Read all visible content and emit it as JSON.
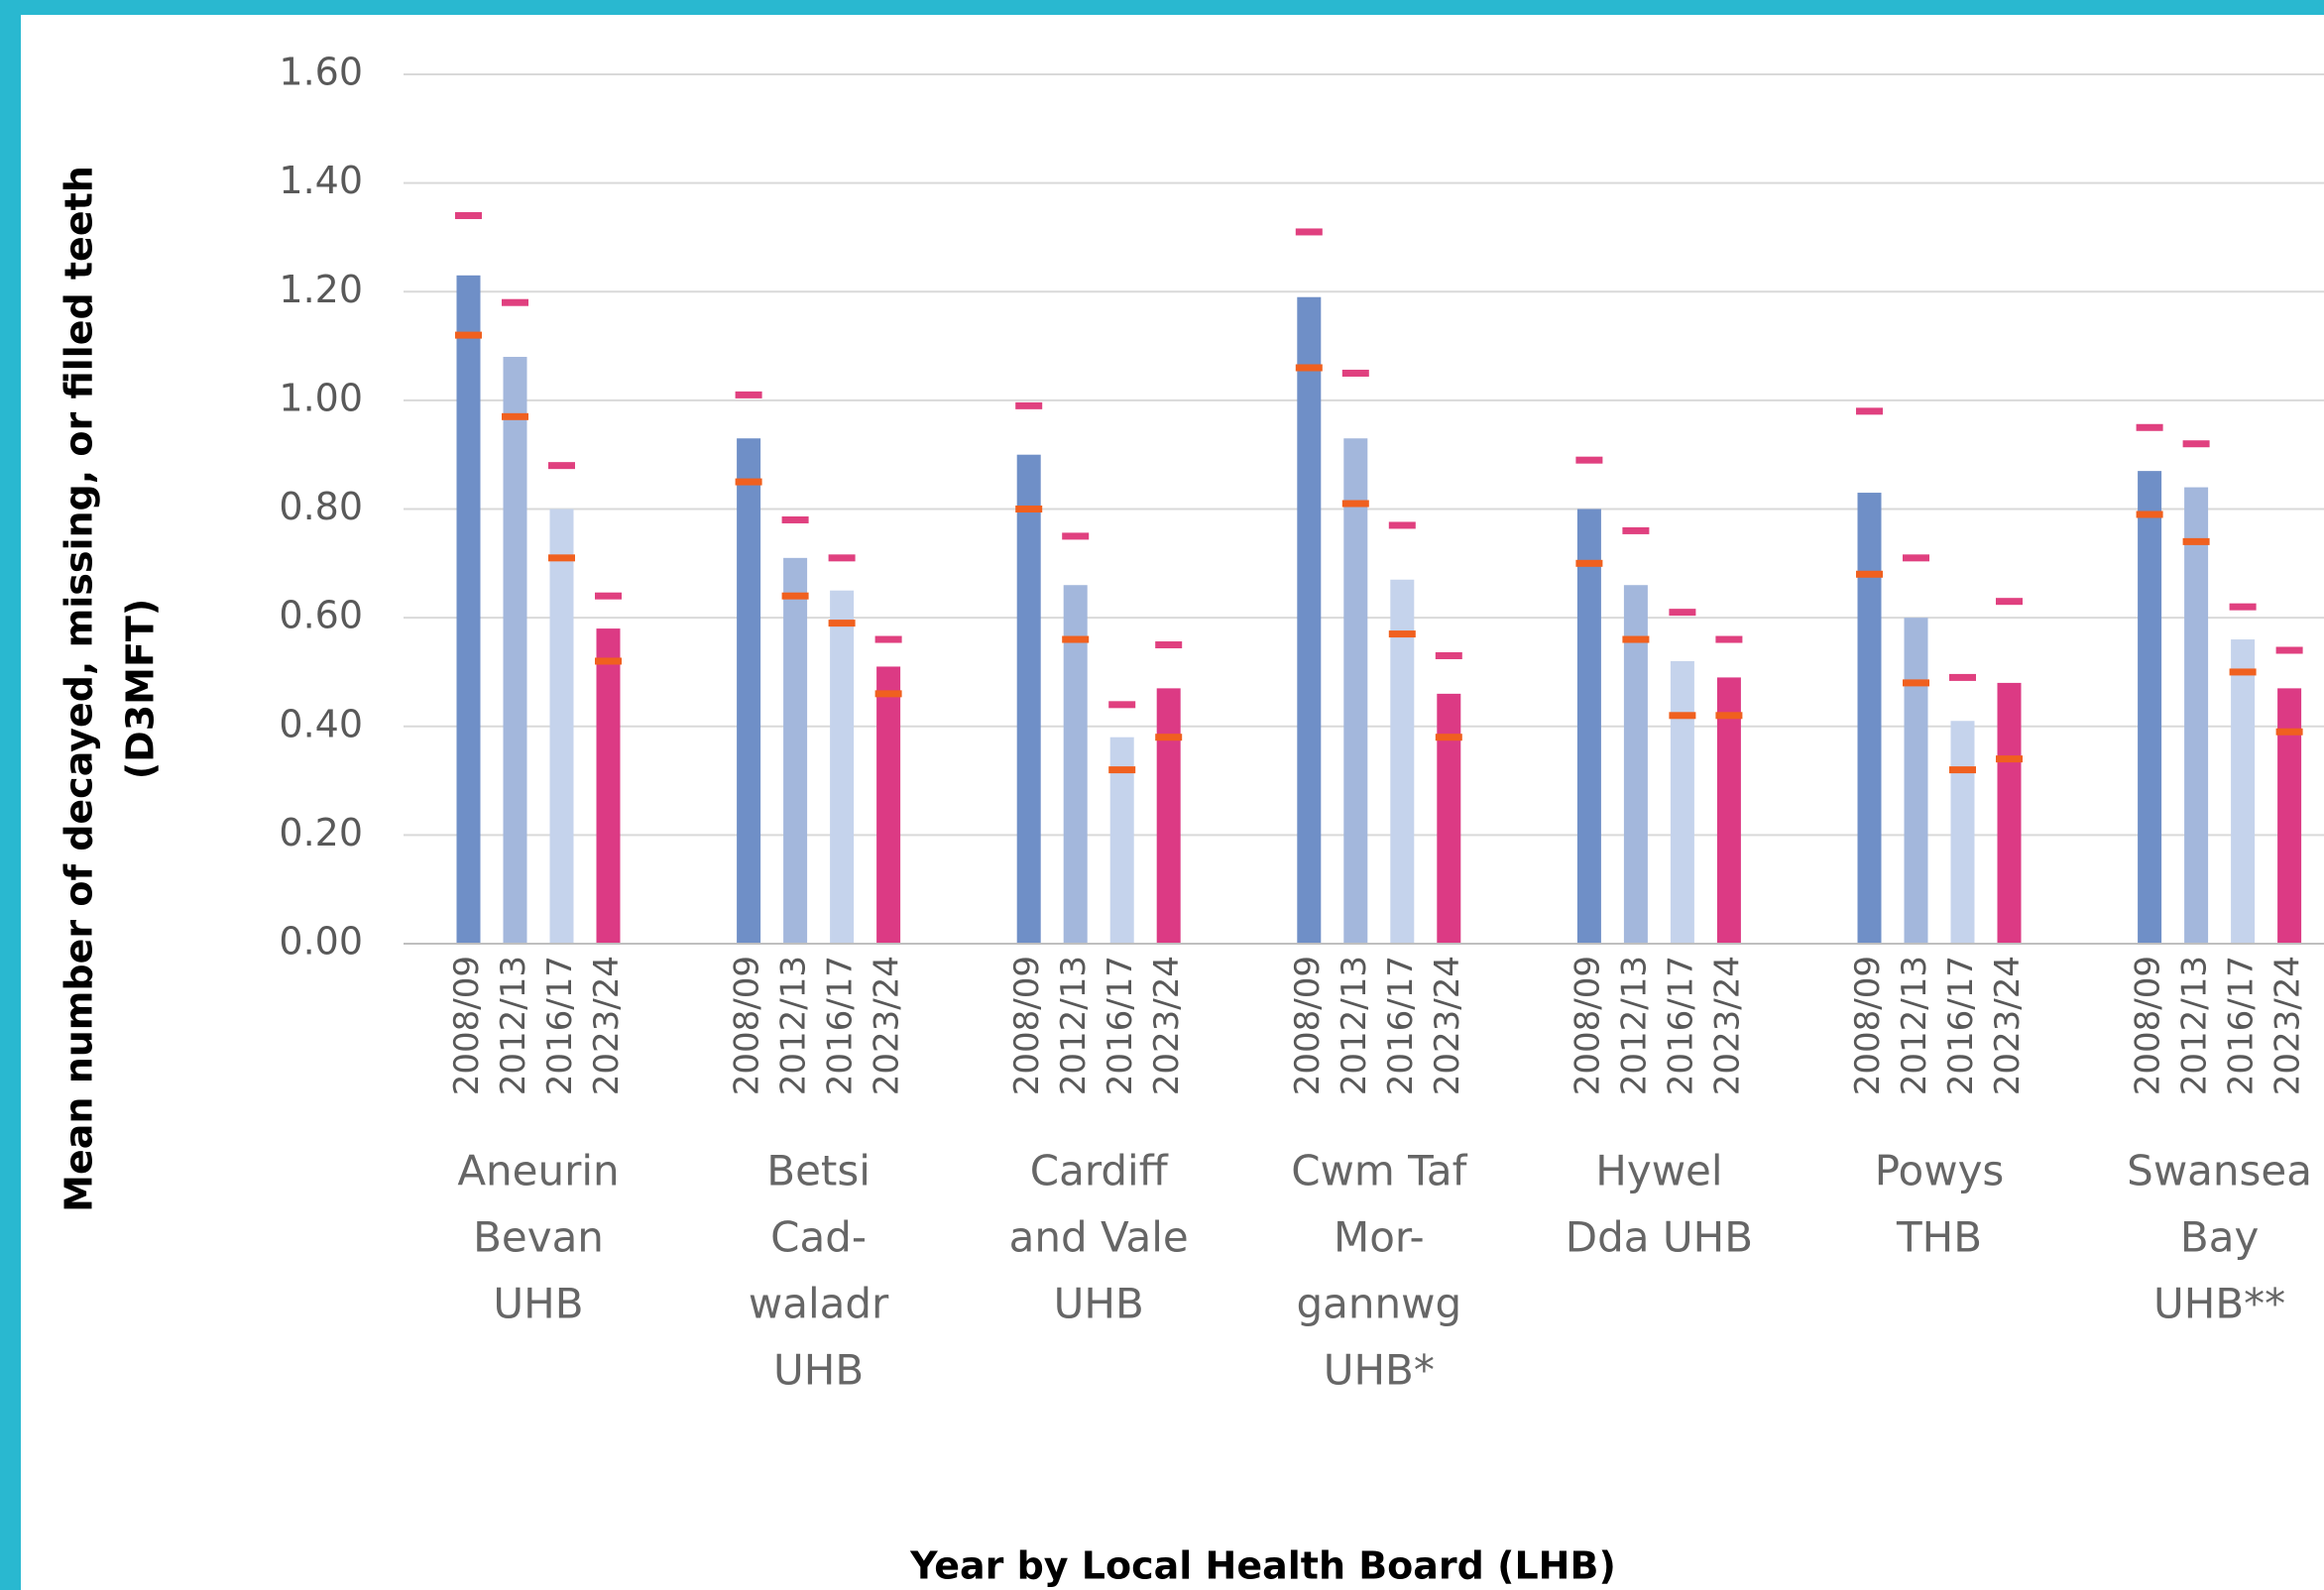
{
  "chart_data": {
    "type": "bar",
    "y_label": [
      "Mean number of decayed, missing, or filled teeth",
      "(D3MFT)"
    ],
    "x_label": "Year by Local Health Board (LHB)",
    "groups": [
      [
        "Aneurin",
        "Bevan",
        "UHB"
      ],
      [
        "Betsi",
        "Cad-",
        "waladr",
        "UHB"
      ],
      [
        "Cardiff",
        "and Vale",
        "UHB"
      ],
      [
        "Cwm Taf",
        "Mor-",
        "gannwg",
        "UHB*"
      ],
      [
        "Hywel",
        "Dda UHB"
      ],
      [
        "Powys",
        "THB"
      ],
      [
        "Swansea",
        "Bay",
        "UHB**"
      ]
    ],
    "series": [
      {
        "name": "2008/09",
        "color": "#6f8fc7",
        "values": [
          1.23,
          0.93,
          0.9,
          1.19,
          0.8,
          0.83,
          0.87
        ],
        "ci_lower": [
          1.12,
          0.85,
          0.8,
          1.06,
          0.7,
          0.68,
          0.79
        ],
        "ci_upper": [
          1.34,
          1.01,
          0.99,
          1.31,
          0.89,
          0.98,
          0.95
        ]
      },
      {
        "name": "2012/13",
        "color": "#a3b7dc",
        "values": [
          1.08,
          0.71,
          0.66,
          0.93,
          0.66,
          0.6,
          0.84
        ],
        "ci_lower": [
          0.97,
          0.64,
          0.56,
          0.81,
          0.56,
          0.48,
          0.74
        ],
        "ci_upper": [
          1.18,
          0.78,
          0.75,
          1.05,
          0.76,
          0.71,
          0.92
        ]
      },
      {
        "name": "2016/17",
        "color": "#c5d3ec",
        "values": [
          0.8,
          0.65,
          0.38,
          0.67,
          0.52,
          0.41,
          0.56
        ],
        "ci_lower": [
          0.71,
          0.59,
          0.32,
          0.57,
          0.42,
          0.32,
          0.5
        ],
        "ci_upper": [
          0.88,
          0.71,
          0.44,
          0.77,
          0.61,
          0.49,
          0.62
        ]
      },
      {
        "name": "2023/24",
        "color": "#dc3a84",
        "values": [
          0.58,
          0.51,
          0.47,
          0.46,
          0.49,
          0.48,
          0.47
        ],
        "ci_lower": [
          0.52,
          0.46,
          0.38,
          0.38,
          0.42,
          0.34,
          0.39
        ],
        "ci_upper": [
          0.64,
          0.56,
          0.55,
          0.53,
          0.56,
          0.63,
          0.54
        ]
      }
    ],
    "ci_upper_color": "#e0407f",
    "ci_lower_color": "#f0601f",
    "ylim": [
      0,
      1.6
    ],
    "yticks": [
      {
        "value": 0,
        "label": "0.00"
      },
      {
        "value": 0.2,
        "label": "0.20"
      },
      {
        "value": 0.4,
        "label": "0.40"
      },
      {
        "value": 0.6,
        "label": "0.60"
      },
      {
        "value": 0.8,
        "label": "0.80"
      },
      {
        "value": 1,
        "label": "1.00"
      },
      {
        "value": 1.2,
        "label": "1.20"
      },
      {
        "value": 1.4,
        "label": "1.40"
      },
      {
        "value": 1.6,
        "label": "1.60"
      }
    ],
    "grid": true
  }
}
